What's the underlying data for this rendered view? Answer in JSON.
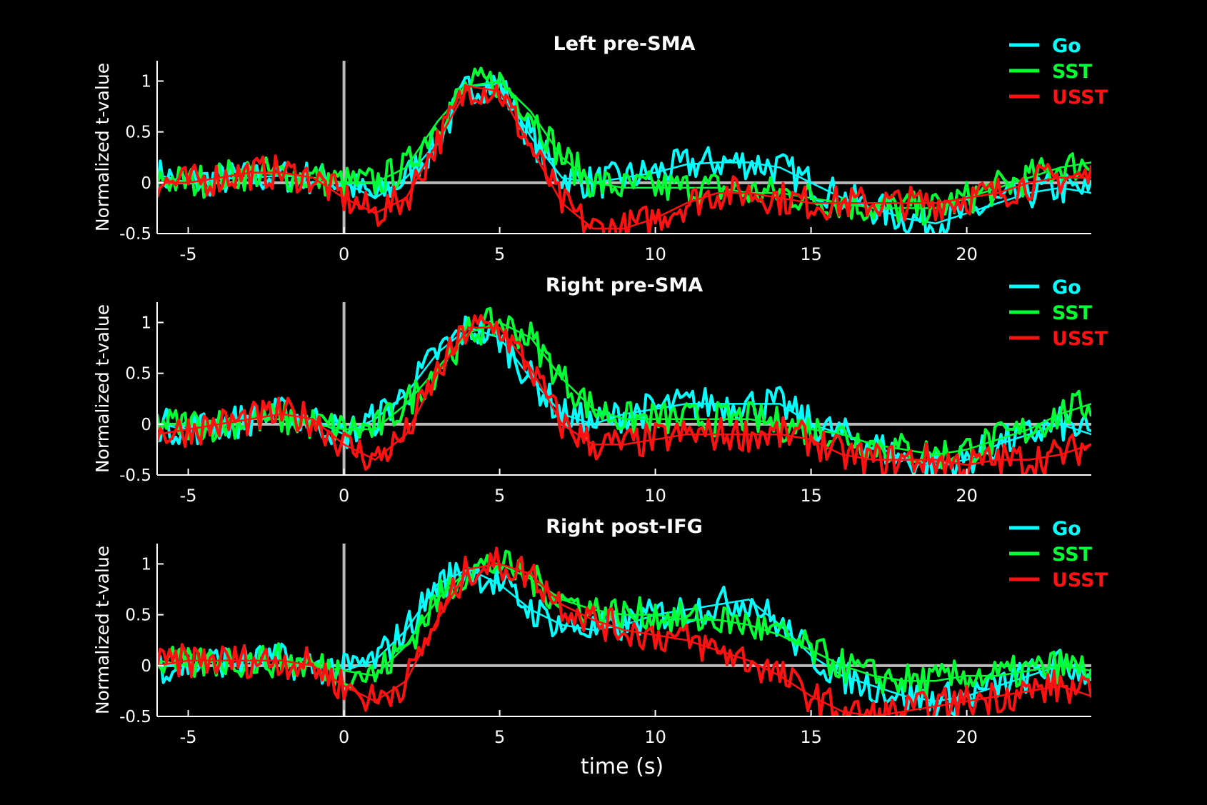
{
  "figure": {
    "xlabel": "time (s)",
    "background": "#000000"
  },
  "colors": {
    "Go": "#00ffff",
    "SST": "#00ff33",
    "USST": "#ff1111",
    "axis": "#ffffff",
    "reference": "#bbbbbb"
  },
  "chart_data": [
    {
      "type": "line",
      "title": "Left pre-SMA",
      "ylabel": "Normalized t-value",
      "xlabel": "",
      "xlim": [
        -6,
        24
      ],
      "ylim": [
        -0.5,
        1.2
      ],
      "xticks": [
        -5,
        0,
        5,
        10,
        15,
        20
      ],
      "yticks": [
        -0.5,
        0,
        0.5,
        1
      ],
      "xtick_labels": [
        "-5",
        "0",
        "5",
        "10",
        "15",
        "20"
      ],
      "ytick_labels": [
        "-0.5",
        "0",
        "0.5",
        "1"
      ],
      "legend": "top-right",
      "reference_lines": {
        "x": 0,
        "y": 0
      },
      "x": [
        -6,
        -5,
        -4,
        -3,
        -2,
        -1,
        0,
        1,
        2,
        3,
        4,
        5,
        6,
        7,
        8,
        9,
        10,
        11,
        12,
        13,
        14,
        15,
        16,
        17,
        18,
        19,
        20,
        21,
        22,
        23,
        24
      ],
      "series": [
        {
          "name": "Go",
          "values": [
            0.08,
            0.0,
            0.04,
            0.05,
            0.07,
            0.05,
            0.0,
            -0.15,
            0.05,
            0.4,
            0.95,
            0.97,
            0.45,
            0.05,
            0.0,
            0.05,
            0.1,
            0.18,
            0.2,
            0.2,
            0.15,
            0.0,
            -0.15,
            -0.25,
            -0.35,
            -0.4,
            -0.3,
            -0.2,
            -0.1,
            -0.05,
            -0.1
          ]
        },
        {
          "name": "SST",
          "values": [
            0.05,
            0.0,
            0.05,
            0.1,
            0.08,
            0.05,
            0.0,
            0.0,
            0.15,
            0.6,
            0.95,
            1.0,
            0.7,
            0.25,
            0.0,
            -0.05,
            -0.05,
            -0.05,
            -0.05,
            -0.1,
            -0.1,
            -0.15,
            -0.2,
            -0.25,
            -0.25,
            -0.25,
            -0.15,
            -0.05,
            0.05,
            0.15,
            0.2
          ]
        },
        {
          "name": "USST",
          "values": [
            0.0,
            0.0,
            0.05,
            0.1,
            0.1,
            0.05,
            -0.15,
            -0.3,
            -0.15,
            0.4,
            0.95,
            0.9,
            0.35,
            -0.2,
            -0.45,
            -0.45,
            -0.35,
            -0.2,
            -0.1,
            -0.1,
            -0.15,
            -0.2,
            -0.2,
            -0.2,
            -0.2,
            -0.2,
            -0.15,
            -0.1,
            0.0,
            0.05,
            0.05
          ]
        }
      ]
    },
    {
      "type": "line",
      "title": "Right pre-SMA",
      "ylabel": "Normalized t-value",
      "xlabel": "",
      "xlim": [
        -6,
        24
      ],
      "ylim": [
        -0.5,
        1.2
      ],
      "xticks": [
        -5,
        0,
        5,
        10,
        15,
        20
      ],
      "yticks": [
        -0.5,
        0,
        0.5,
        1
      ],
      "xtick_labels": [
        "-5",
        "0",
        "5",
        "10",
        "15",
        "20"
      ],
      "ytick_labels": [
        "-0.5",
        "0",
        "0.5",
        "1"
      ],
      "legend": "top-right",
      "reference_lines": {
        "x": 0,
        "y": 0
      },
      "x": [
        -6,
        -5,
        -4,
        -3,
        -2,
        -1,
        0,
        1,
        2,
        3,
        4,
        5,
        6,
        7,
        8,
        9,
        10,
        11,
        12,
        13,
        14,
        15,
        16,
        17,
        18,
        19,
        20,
        21,
        22,
        23,
        24
      ],
      "series": [
        {
          "name": "Go",
          "values": [
            0.0,
            -0.05,
            0.0,
            0.05,
            0.1,
            0.05,
            -0.1,
            0.05,
            0.3,
            0.7,
            0.95,
            0.85,
            0.45,
            0.1,
            0.0,
            0.1,
            0.15,
            0.2,
            0.2,
            0.2,
            0.2,
            0.0,
            -0.1,
            -0.2,
            -0.35,
            -0.4,
            -0.35,
            -0.2,
            -0.1,
            0.0,
            -0.1
          ]
        },
        {
          "name": "SST",
          "values": [
            0.0,
            0.0,
            0.0,
            0.05,
            0.05,
            0.0,
            -0.05,
            -0.05,
            0.2,
            0.55,
            0.9,
            1.0,
            0.85,
            0.45,
            0.15,
            0.05,
            0.05,
            0.05,
            0.05,
            0.05,
            0.0,
            -0.05,
            -0.1,
            -0.2,
            -0.25,
            -0.3,
            -0.25,
            -0.15,
            -0.05,
            0.1,
            0.2
          ]
        },
        {
          "name": "USST",
          "values": [
            -0.1,
            -0.05,
            0.0,
            0.05,
            0.1,
            0.05,
            -0.2,
            -0.35,
            -0.1,
            0.5,
            0.95,
            0.95,
            0.55,
            0.0,
            -0.2,
            -0.2,
            -0.15,
            -0.1,
            -0.1,
            -0.1,
            -0.1,
            -0.15,
            -0.3,
            -0.35,
            -0.35,
            -0.35,
            -0.4,
            -0.35,
            -0.35,
            -0.3,
            -0.2
          ]
        }
      ]
    },
    {
      "type": "line",
      "title": "Right post-IFG",
      "ylabel": "Normalized t-value",
      "xlabel": "time (s)",
      "xlim": [
        -6,
        24
      ],
      "ylim": [
        -0.5,
        1.2
      ],
      "xticks": [
        -5,
        0,
        5,
        10,
        15,
        20
      ],
      "yticks": [
        -0.5,
        0,
        0.5,
        1
      ],
      "xtick_labels": [
        "-5",
        "0",
        "5",
        "10",
        "15",
        "20"
      ],
      "ytick_labels": [
        "-0.5",
        "0",
        "0.5",
        "1"
      ],
      "legend": "top-right",
      "reference_lines": {
        "x": 0,
        "y": 0
      },
      "x": [
        -6,
        -5,
        -4,
        -3,
        -2,
        -1,
        0,
        1,
        2,
        3,
        4,
        5,
        6,
        7,
        8,
        9,
        10,
        11,
        12,
        13,
        14,
        15,
        16,
        17,
        18,
        19,
        20,
        21,
        22,
        23,
        24
      ],
      "series": [
        {
          "name": "Go",
          "values": [
            0.0,
            0.0,
            0.05,
            0.05,
            0.05,
            0.0,
            -0.05,
            0.05,
            0.35,
            0.8,
            0.95,
            0.8,
            0.55,
            0.4,
            0.35,
            0.4,
            0.5,
            0.55,
            0.6,
            0.65,
            0.4,
            0.1,
            -0.1,
            -0.2,
            -0.3,
            -0.35,
            -0.3,
            -0.2,
            -0.1,
            0.0,
            -0.05
          ]
        },
        {
          "name": "SST",
          "values": [
            0.05,
            0.0,
            0.05,
            0.05,
            0.05,
            0.0,
            -0.05,
            -0.1,
            0.2,
            0.65,
            0.95,
            1.0,
            0.85,
            0.65,
            0.55,
            0.5,
            0.5,
            0.45,
            0.45,
            0.4,
            0.3,
            0.15,
            0.0,
            -0.1,
            -0.15,
            -0.15,
            -0.1,
            -0.1,
            -0.05,
            0.0,
            -0.05
          ]
        },
        {
          "name": "USST",
          "values": [
            0.0,
            0.05,
            0.05,
            0.05,
            0.05,
            0.0,
            -0.2,
            -0.35,
            -0.15,
            0.45,
            0.95,
            1.0,
            0.9,
            0.6,
            0.45,
            0.35,
            0.3,
            0.25,
            0.15,
            0.05,
            -0.1,
            -0.3,
            -0.45,
            -0.5,
            -0.45,
            -0.4,
            -0.35,
            -0.3,
            -0.25,
            -0.2,
            -0.3
          ]
        }
      ]
    }
  ]
}
